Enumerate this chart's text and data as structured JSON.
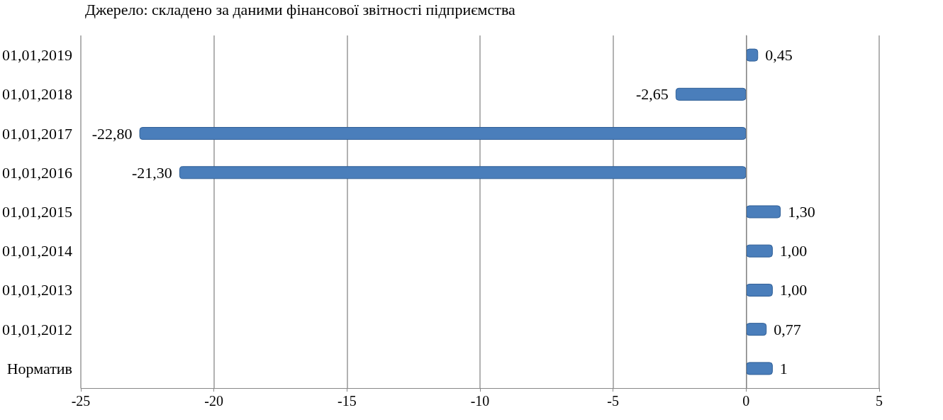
{
  "chart_data": {
    "type": "bar",
    "orientation": "horizontal",
    "annotations": [
      "Джерело: складено за даними фінансової звітності підприємства"
    ],
    "categories": [
      "01,01,2019",
      "01,01,2018",
      "01,01,2017",
      "01,01,2016",
      "01,01,2015",
      "01,01,2014",
      "01,01,2013",
      "01,01,2012",
      "Норматив"
    ],
    "values": [
      0.45,
      -2.65,
      -22.8,
      -21.3,
      1.3,
      1.0,
      1.0,
      0.77,
      1
    ],
    "value_labels": [
      "0,45",
      "-2,65",
      "-22,80",
      "-21,30",
      "1,30",
      "1,00",
      "1,00",
      "0,77",
      "1"
    ],
    "color": "#4a7ebb",
    "xlim": [
      -25,
      5
    ],
    "xticks": [
      -25,
      -20,
      -15,
      -10,
      -5,
      0,
      5
    ],
    "grid": "x"
  }
}
